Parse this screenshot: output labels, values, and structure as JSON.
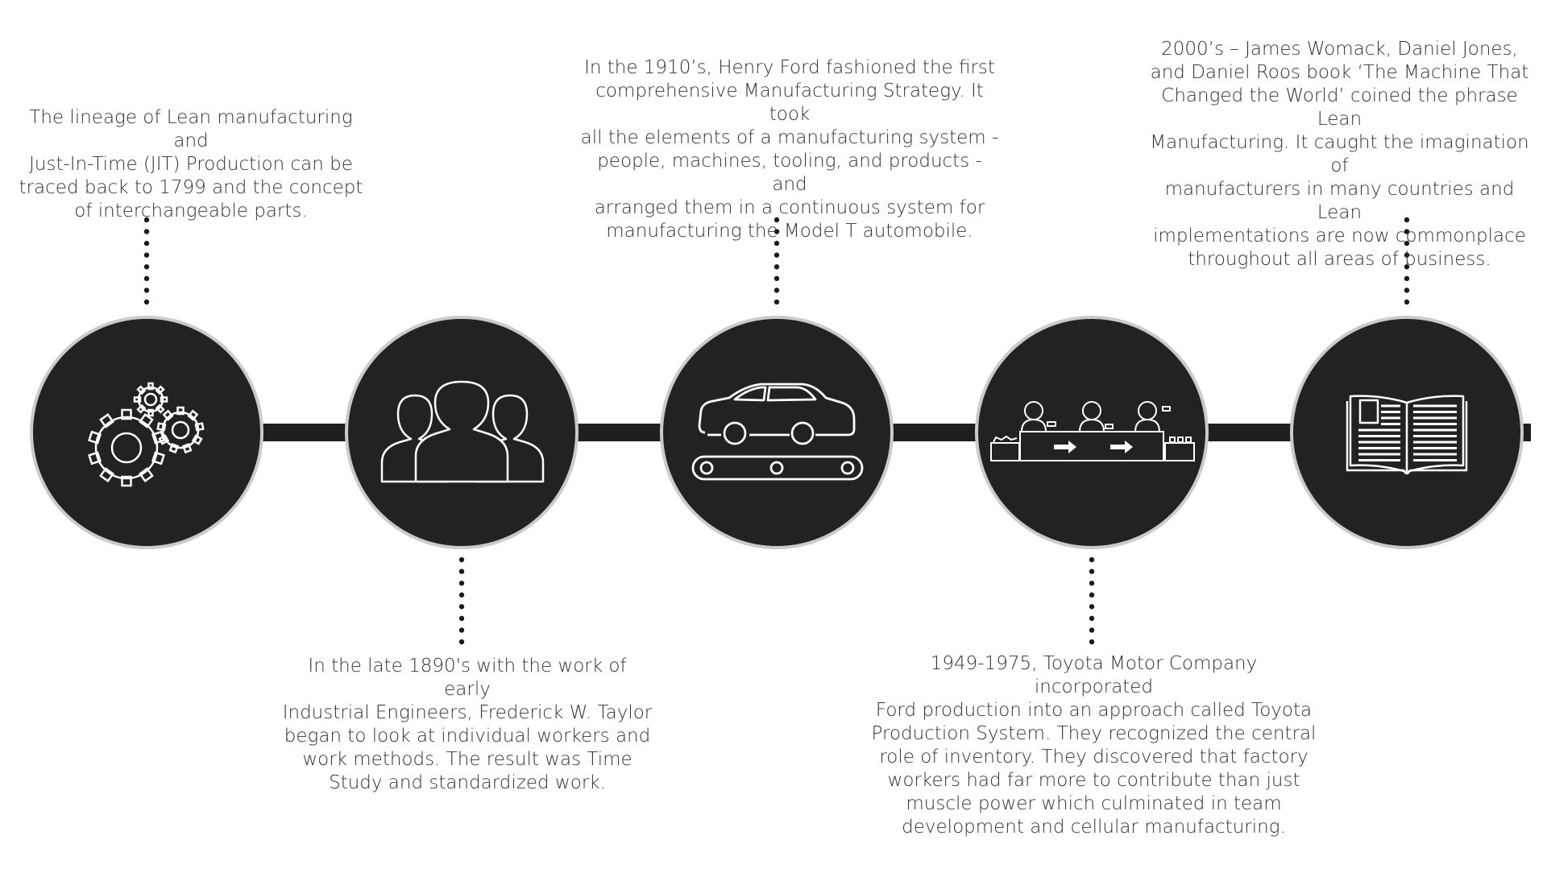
{
  "milestones": [
    {
      "icon": "gears-icon",
      "text_lines": [
        "The lineage of Lean manufacturing and",
        "Just-In-Time (JIT) Production can be",
        "traced back to 1799 and the concept",
        "of interchangeable parts."
      ]
    },
    {
      "icon": "people-icon",
      "text_lines": [
        "In the late 1890's with the work of early",
        "Industrial Engineers, Frederick W. Taylor",
        "began to look at individual workers and",
        "work methods. The result was Time",
        "Study and standardized work."
      ]
    },
    {
      "icon": "car-conveyor-icon",
      "text_lines": [
        "In the 1910’s, Henry Ford fashioned the first",
        "comprehensive Manufacturing Strategy. It took",
        "all the elements of a manufacturing system -",
        "people, machines, tooling, and products - and",
        "arranged them in a continuous system for",
        "manufacturing the Model T automobile."
      ]
    },
    {
      "icon": "production-line-icon",
      "text_lines": [
        "1949-1975, Toyota Motor Company incorporated",
        "Ford production into an approach called Toyota",
        "Production System. They recognized the central",
        "role of inventory. They discovered that factory",
        "workers had far more to contribute than just",
        "muscle power which culminated in team",
        "development and cellular manufacturing."
      ]
    },
    {
      "icon": "open-book-icon",
      "text_lines": [
        "2000’s – James Womack, Daniel Jones,",
        "and Daniel Roos book ‘The Machine That",
        "Changed the World’ coined the phrase Lean",
        "Manufacturing. It caught the imagination of",
        "manufacturers in many countries and Lean",
        "implementations are now commonplace",
        "throughout all areas of business."
      ]
    }
  ],
  "colors": {
    "circle_fill": "#222222",
    "circle_ring": "#c9ccc9",
    "connector": "#1f1f1f",
    "dots": "#1a1a1a",
    "icon_stroke": "#ffffff",
    "text": "#333333"
  }
}
